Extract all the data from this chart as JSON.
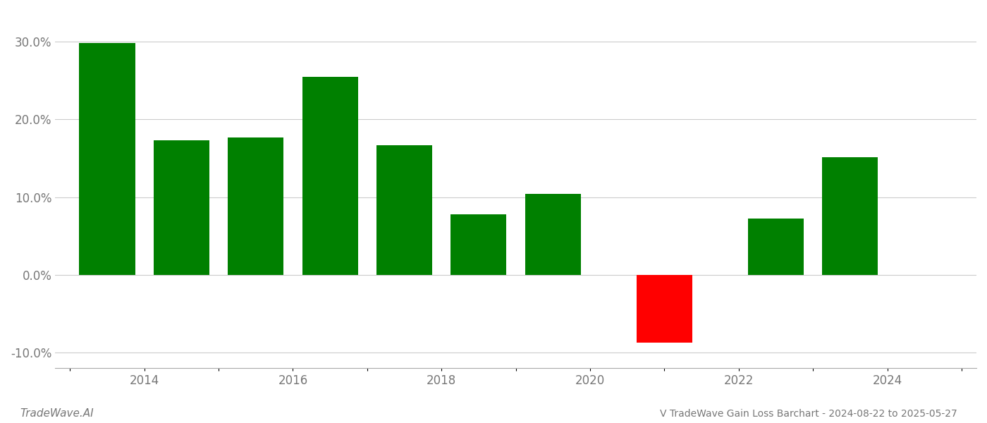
{
  "years": [
    2013.5,
    2014.5,
    2015.5,
    2016.5,
    2017.5,
    2018.5,
    2019.5,
    2021.0,
    2022.5,
    2023.5
  ],
  "values": [
    29.8,
    17.3,
    17.7,
    25.5,
    16.7,
    7.8,
    10.4,
    -8.7,
    7.2,
    15.1
  ],
  "bar_colors": [
    "#008000",
    "#008000",
    "#008000",
    "#008000",
    "#008000",
    "#008000",
    "#008000",
    "#ff0000",
    "#008000",
    "#008000"
  ],
  "title": "V TradeWave Gain Loss Barchart - 2024-08-22 to 2025-05-27",
  "watermark": "TradeWave.AI",
  "ylim": [
    -12,
    34
  ],
  "yticks": [
    -10.0,
    0.0,
    10.0,
    20.0,
    30.0
  ],
  "xtick_labels": [
    "",
    "2014",
    "",
    "2016",
    "",
    "2018",
    "",
    "2020",
    "",
    "2022",
    "",
    "2024",
    ""
  ],
  "xtick_positions": [
    2013,
    2014,
    2015,
    2016,
    2017,
    2018,
    2019,
    2020,
    2021,
    2022,
    2023,
    2024,
    2025
  ],
  "xlim": [
    2012.8,
    2025.2
  ],
  "background_color": "#ffffff",
  "grid_color": "#cccccc",
  "bar_width": 0.75
}
